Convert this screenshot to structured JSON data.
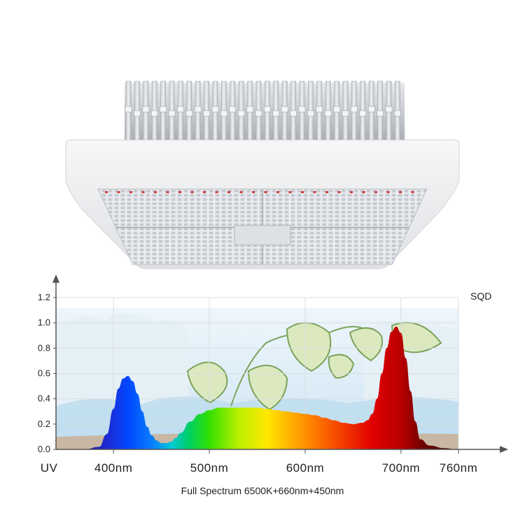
{
  "product": {
    "icon": "led-grow-light-fixture-icon"
  },
  "chart_data": {
    "type": "area",
    "title": "",
    "brand_label": "SQD",
    "xlabel": "Full Spectrum 6500K+660nm+450nm",
    "ylabel": "",
    "x_tick_labels": [
      "UV",
      "400nm",
      "500nm",
      "600nm",
      "700nm",
      "760nm"
    ],
    "x_tick_values": [
      340,
      400,
      500,
      600,
      700,
      760
    ],
    "y_tick_labels": [
      "0.0",
      "0.2",
      "0.4",
      "0.6",
      "0.8",
      "1.0",
      "1.2"
    ],
    "y_tick_values": [
      0,
      0.2,
      0.4,
      0.6,
      0.8,
      1.0,
      1.2
    ],
    "xlim": [
      340,
      760
    ],
    "ylim": [
      0,
      1.2
    ],
    "grid": true,
    "legend": "none",
    "series": [
      {
        "x": [
          340,
          370,
          385,
          393,
          400,
          405,
          410,
          415,
          420,
          425,
          430,
          435,
          440,
          445,
          450,
          455,
          460,
          465,
          470,
          480,
          490,
          500,
          510,
          520,
          530,
          540,
          550,
          560,
          570,
          580,
          590,
          600,
          610,
          620,
          630,
          640,
          650,
          660,
          665,
          670,
          675,
          680,
          685,
          690,
          695,
          700,
          705,
          710,
          715,
          720,
          730,
          745,
          760
        ],
        "y": [
          0.0,
          0.0,
          0.02,
          0.12,
          0.32,
          0.48,
          0.56,
          0.58,
          0.54,
          0.44,
          0.3,
          0.18,
          0.11,
          0.07,
          0.05,
          0.05,
          0.06,
          0.09,
          0.13,
          0.22,
          0.28,
          0.31,
          0.33,
          0.33,
          0.33,
          0.33,
          0.33,
          0.32,
          0.31,
          0.3,
          0.29,
          0.28,
          0.27,
          0.25,
          0.23,
          0.21,
          0.2,
          0.21,
          0.23,
          0.28,
          0.4,
          0.6,
          0.8,
          0.93,
          0.97,
          0.92,
          0.72,
          0.46,
          0.22,
          0.08,
          0.03,
          0.01,
          0.0
        ]
      }
    ]
  }
}
